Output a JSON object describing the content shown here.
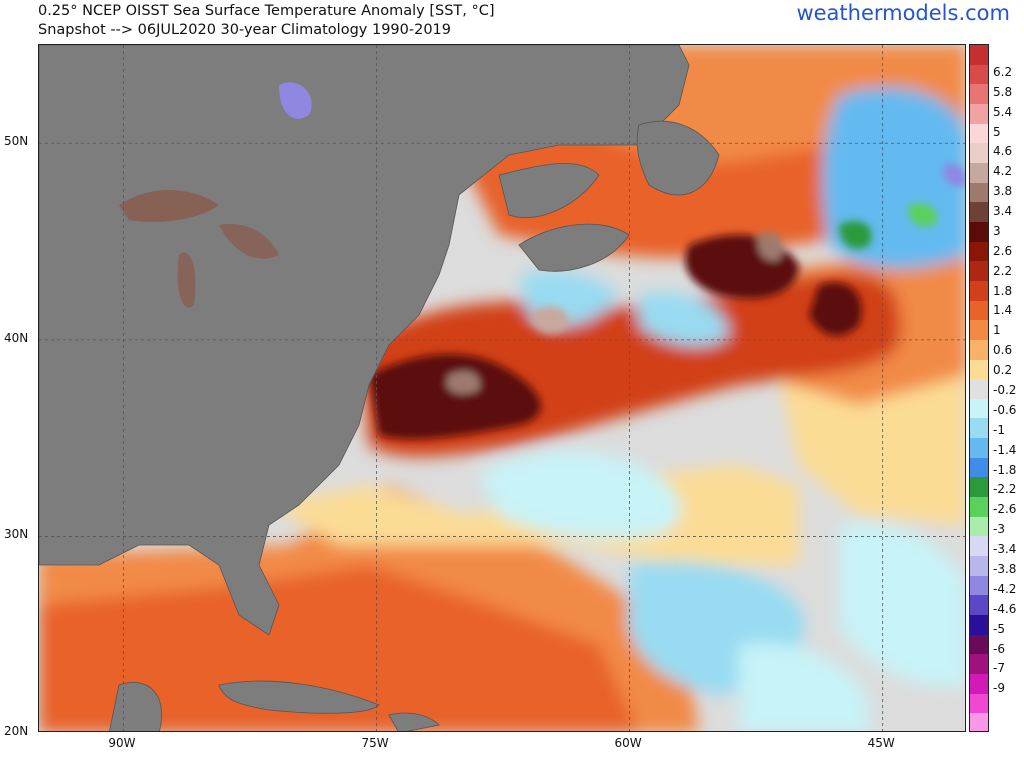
{
  "header": {
    "title": "0.25° NCEP OISST Sea Surface Temperature Anomaly [SST, °C]",
    "subtitle": "Snapshot --> 06JUL2020   30-year Climatology 1990-2019",
    "brand": "weathermodels.com"
  },
  "map": {
    "lon_range": [
      -95,
      -40
    ],
    "lat_range": [
      20,
      55
    ],
    "lat_labels": [
      {
        "text": "50N",
        "lat": 50
      },
      {
        "text": "40N",
        "lat": 40
      },
      {
        "text": "30N",
        "lat": 30
      },
      {
        "text": "20N",
        "lat": 20
      }
    ],
    "lon_labels": [
      {
        "text": "90W",
        "lon": -90
      },
      {
        "text": "75W",
        "lon": -75
      },
      {
        "text": "60W",
        "lon": -60
      },
      {
        "text": "45W",
        "lon": -45
      }
    ],
    "land_color": "#7d7d7d",
    "grid": true
  },
  "colorbar": {
    "labels": [
      "6.2",
      "5.8",
      "5.4",
      "5",
      "4.6",
      "4.2",
      "3.8",
      "3.4",
      "3",
      "2.6",
      "2.2",
      "1.8",
      "1.4",
      "1",
      "0.6",
      "0.2",
      "-0.2",
      "-0.6",
      "-1",
      "-1.4",
      "-1.8",
      "-2.2",
      "-2.6",
      "-3",
      "-3.4",
      "-3.8",
      "-4.2",
      "-4.6",
      "-5",
      "-6",
      "-7",
      "-9"
    ],
    "colors": [
      "#c62f2f",
      "#d94a4a",
      "#e87474",
      "#f1a2a2",
      "#fbd8d8",
      "#e9cfc8",
      "#c7a89e",
      "#9e7a6e",
      "#6e4136",
      "#5c0c08",
      "#8a1608",
      "#ad2810",
      "#d14119",
      "#e8622a",
      "#f28a46",
      "#f7b267",
      "#fbdc95",
      "#e0e0e0",
      "#c8f3f7",
      "#98dbf2",
      "#64baf0",
      "#3f8de8",
      "#2a9a3a",
      "#5bd05b",
      "#a9ecae",
      "#d8d8f4",
      "#b9b6ec",
      "#8f87e0",
      "#5b47c8",
      "#2a0f9a",
      "#6a0a5a",
      "#a0107e",
      "#d21ab6",
      "#f048d2",
      "#f898e6"
    ],
    "top_color": "#c62f2f"
  }
}
